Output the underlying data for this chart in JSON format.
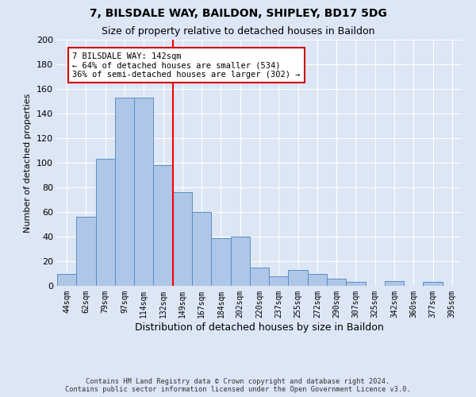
{
  "title1": "7, BILSDALE WAY, BAILDON, SHIPLEY, BD17 5DG",
  "title2": "Size of property relative to detached houses in Baildon",
  "xlabel": "Distribution of detached houses by size in Baildon",
  "ylabel": "Number of detached properties",
  "categories": [
    "44sqm",
    "62sqm",
    "79sqm",
    "97sqm",
    "114sqm",
    "132sqm",
    "149sqm",
    "167sqm",
    "184sqm",
    "202sqm",
    "220sqm",
    "237sqm",
    "255sqm",
    "272sqm",
    "290sqm",
    "307sqm",
    "325sqm",
    "342sqm",
    "360sqm",
    "377sqm",
    "395sqm"
  ],
  "values": [
    10,
    56,
    103,
    153,
    153,
    98,
    76,
    60,
    39,
    40,
    15,
    8,
    13,
    10,
    6,
    3,
    0,
    4,
    0,
    3,
    0
  ],
  "bar_color": "#aec6e8",
  "bar_edge_color": "#5a8fc2",
  "annotation_text": "7 BILSDALE WAY: 142sqm\n← 64% of detached houses are smaller (534)\n36% of semi-detached houses are larger (302) →",
  "annotation_box_color": "#ffffff",
  "annotation_box_edge": "#cc0000",
  "background_color": "#dce6f5",
  "plot_background": "#dce6f5",
  "footer": "Contains HM Land Registry data © Crown copyright and database right 2024.\nContains public sector information licensed under the Open Government Licence v3.0.",
  "ylim": [
    0,
    200
  ],
  "yticks": [
    0,
    20,
    40,
    60,
    80,
    100,
    120,
    140,
    160,
    180,
    200
  ],
  "red_line_x": 5.5
}
